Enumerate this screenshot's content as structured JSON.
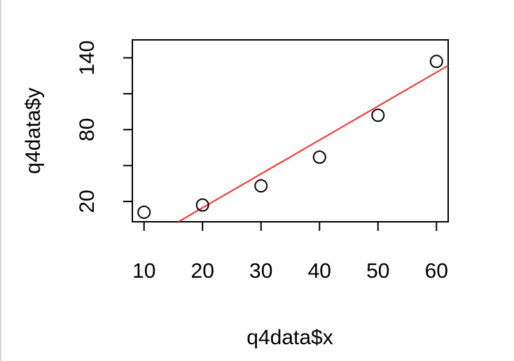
{
  "chart_data": {
    "type": "scatter",
    "xlabel": "q4data$x",
    "ylabel": "q4data$y",
    "xlim": [
      8,
      62
    ],
    "ylim": [
      3,
      155
    ],
    "x_ticks": [
      10,
      20,
      30,
      40,
      50,
      60
    ],
    "y_ticks": [
      20,
      50,
      80,
      110,
      140
    ],
    "y_tick_labels": [
      "20",
      "",
      "80",
      "",
      "140"
    ],
    "points": [
      {
        "x": 10,
        "y": 11
      },
      {
        "x": 20,
        "y": 17
      },
      {
        "x": 30,
        "y": 33
      },
      {
        "x": 40,
        "y": 57
      },
      {
        "x": 50,
        "y": 92
      },
      {
        "x": 60,
        "y": 137
      }
    ],
    "fit_line": {
      "intercept": -41.9,
      "slope": 2.83,
      "color": "#ff2a2a"
    },
    "point_style": "open-circle",
    "grid": false,
    "colors": {
      "points": "#000000",
      "line": "#ff2a2a",
      "frame": "#000000"
    }
  }
}
